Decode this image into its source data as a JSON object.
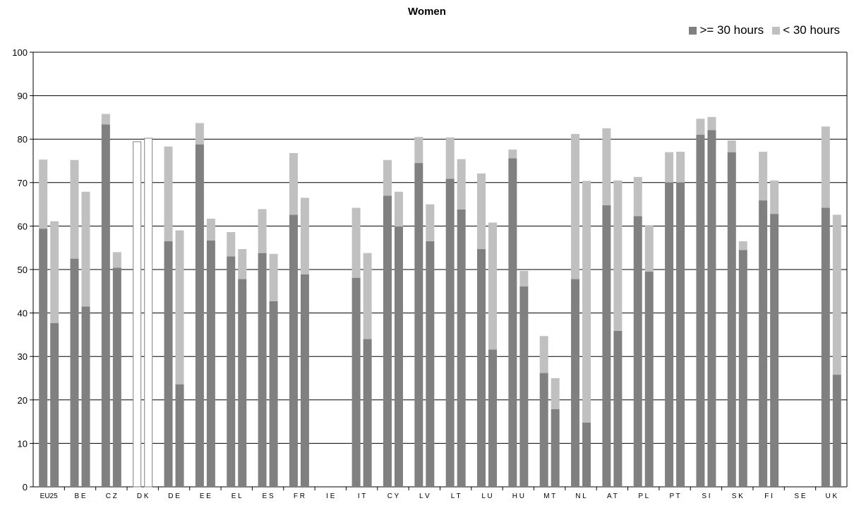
{
  "chart_data": {
    "type": "bar",
    "title": "Women",
    "xlabel": "",
    "ylabel": "",
    "ylim": [
      0,
      100
    ],
    "yticks": [
      0,
      10,
      20,
      30,
      40,
      50,
      60,
      70,
      80,
      90,
      100
    ],
    "grid": true,
    "legend_placement": "top-right",
    "stacked": true,
    "categories": [
      "EU25",
      "B E",
      "C Z",
      "D K",
      "D E",
      "E E",
      "E L",
      "E S",
      "F R",
      "I E",
      "I T",
      "C Y",
      "L V",
      "L T",
      "L U",
      "H U",
      "M T",
      "N L",
      "A T",
      "P L",
      "P T",
      "S I",
      "S K",
      "F I",
      "S E",
      "U K"
    ],
    "bars_per_category": 2,
    "series": [
      {
        "name": ">= 30 hours",
        "color": "#808080",
        "values": [
          [
            59.4,
            37.7
          ],
          [
            52.5,
            41.5
          ],
          [
            83.4,
            50.4
          ],
          [
            null,
            null
          ],
          [
            56.5,
            23.6
          ],
          [
            78.8,
            56.7
          ],
          [
            53.0,
            47.8
          ],
          [
            53.8,
            42.7
          ],
          [
            62.6,
            48.9
          ],
          [
            null,
            null
          ],
          [
            48.1,
            34.0
          ],
          [
            67.0,
            59.9
          ],
          [
            74.5,
            56.5
          ],
          [
            70.9,
            63.8
          ],
          [
            54.7,
            31.6
          ],
          [
            75.6,
            46.1
          ],
          [
            26.2,
            17.9
          ],
          [
            47.8,
            14.8
          ],
          [
            64.8,
            35.9
          ],
          [
            62.3,
            49.5
          ],
          [
            70.0,
            70.0
          ],
          [
            81.0,
            82.1
          ],
          [
            77.0,
            54.5
          ],
          [
            65.9,
            62.8
          ],
          [
            null,
            null
          ],
          [
            64.2,
            25.8
          ]
        ]
      },
      {
        "name": "< 30 hours",
        "color": "#c0c0c0",
        "values": [
          [
            15.9,
            23.4
          ],
          [
            22.7,
            26.4
          ],
          [
            2.4,
            3.6
          ],
          [
            null,
            null
          ],
          [
            21.8,
            35.4
          ],
          [
            4.9,
            5.0
          ],
          [
            5.6,
            6.9
          ],
          [
            10.1,
            10.9
          ],
          [
            14.2,
            17.6
          ],
          [
            null,
            null
          ],
          [
            16.1,
            19.8
          ],
          [
            8.2,
            8.0
          ],
          [
            6.0,
            8.5
          ],
          [
            9.5,
            11.6
          ],
          [
            17.4,
            29.2
          ],
          [
            2.0,
            3.6
          ],
          [
            8.5,
            7.1
          ],
          [
            33.4,
            55.6
          ],
          [
            17.7,
            34.6
          ],
          [
            9.0,
            10.7
          ],
          [
            7.0,
            7.1
          ],
          [
            3.7,
            3.0
          ],
          [
            2.7,
            2.0
          ],
          [
            11.2,
            7.7
          ],
          [
            null,
            null
          ],
          [
            18.7,
            36.8
          ]
        ]
      }
    ],
    "total_only": {
      "category": "D K",
      "values": [
        79.4,
        80.2
      ],
      "style": "white bar with grey outline"
    }
  }
}
